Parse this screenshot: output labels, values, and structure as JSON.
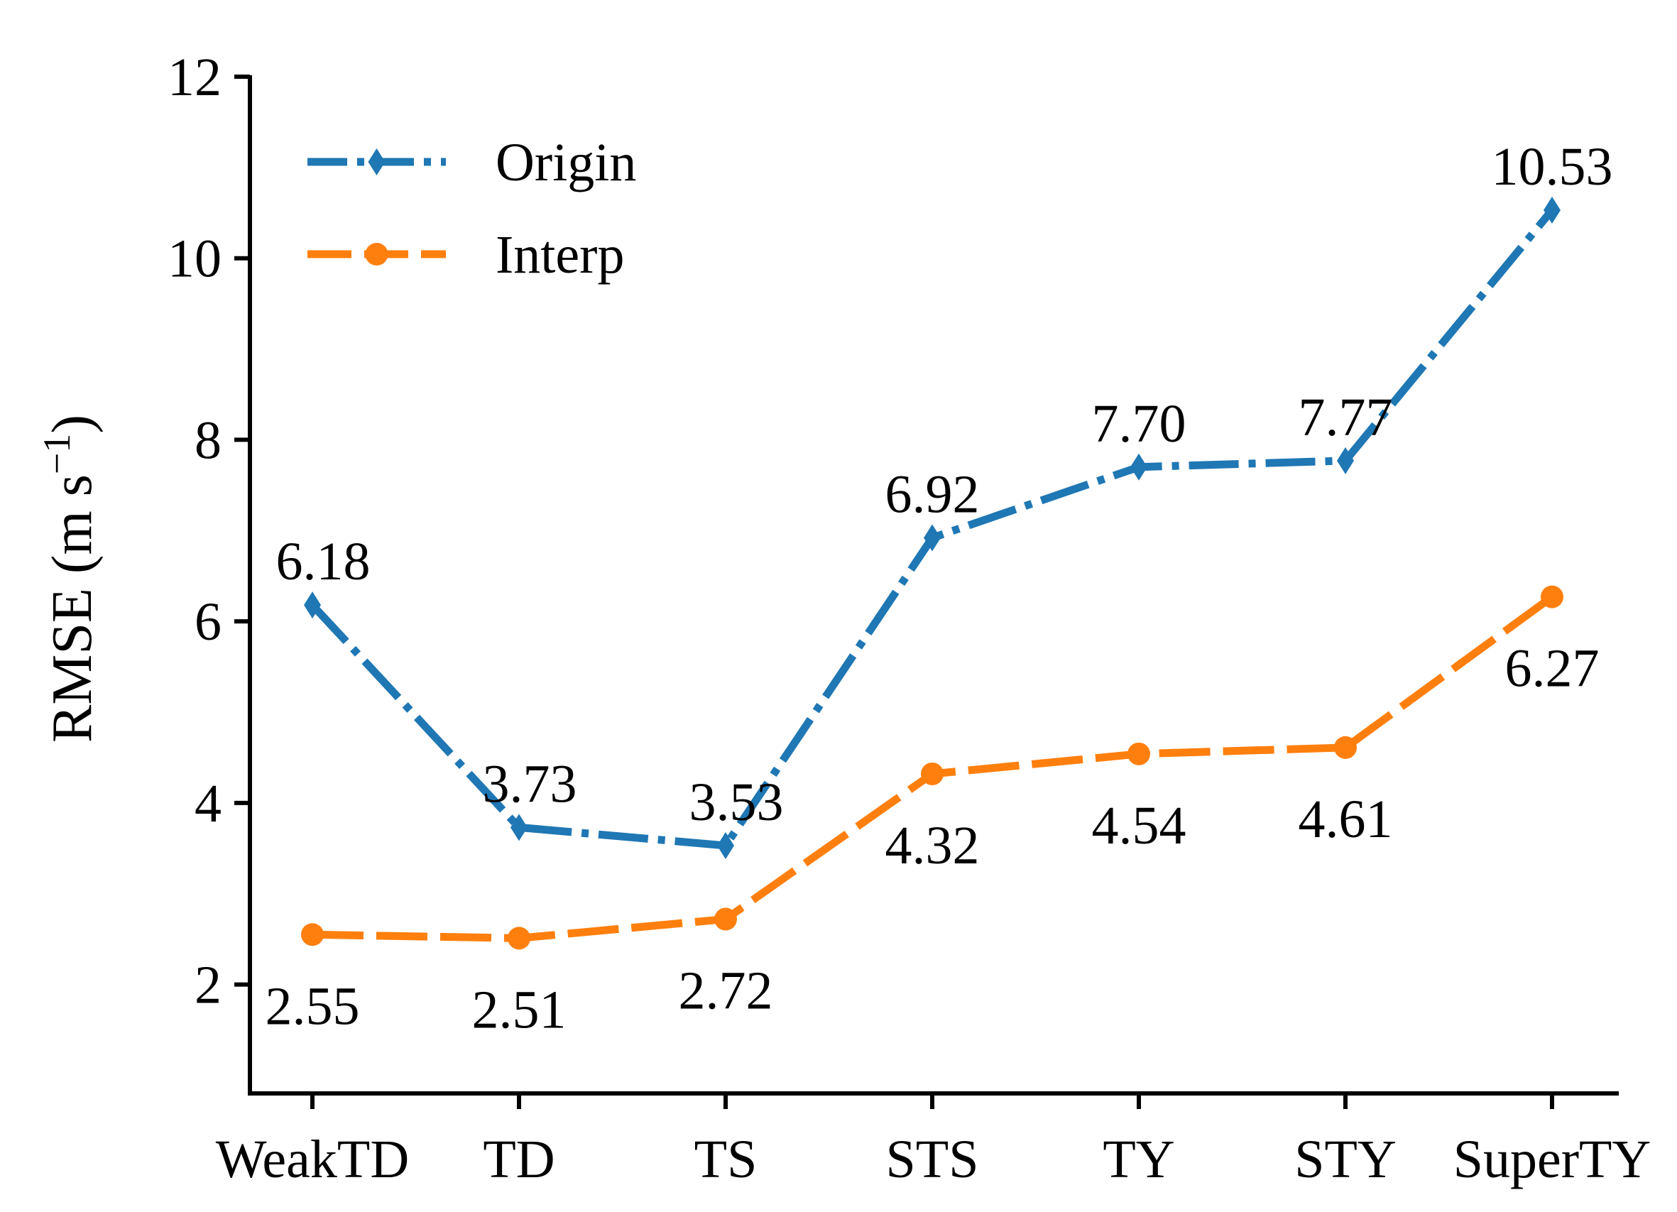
{
  "chart_data": {
    "type": "line",
    "title": "",
    "xlabel": "",
    "ylabel_main": "RMSE (m s",
    "ylabel_sup": "−1",
    "ylabel_close": ")",
    "categories": [
      "WeakTD",
      "TD",
      "TS",
      "STS",
      "TY",
      "STY",
      "SuperTY"
    ],
    "ylim": [
      0.8,
      12.0
    ],
    "yticks": [
      2,
      4,
      6,
      8,
      10,
      12
    ],
    "grid": false,
    "legend_position": "top-left",
    "series": [
      {
        "name": "Origin",
        "values": [
          6.18,
          3.73,
          3.53,
          6.92,
          7.7,
          7.77,
          10.53
        ],
        "labels": [
          "6.18",
          "3.73",
          "3.53",
          "6.92",
          "7.70",
          "7.77",
          "10.53"
        ],
        "color": "#1f77b4",
        "marker": "diamond",
        "linestyle": "dashdot"
      },
      {
        "name": "Interp",
        "values": [
          2.55,
          2.51,
          2.72,
          4.32,
          4.54,
          4.61,
          6.27
        ],
        "labels": [
          "2.55",
          "2.51",
          "2.72",
          "4.32",
          "4.54",
          "4.61",
          "6.27"
        ],
        "color": "#ff7f0e",
        "marker": "circle",
        "linestyle": "longdash"
      }
    ]
  }
}
